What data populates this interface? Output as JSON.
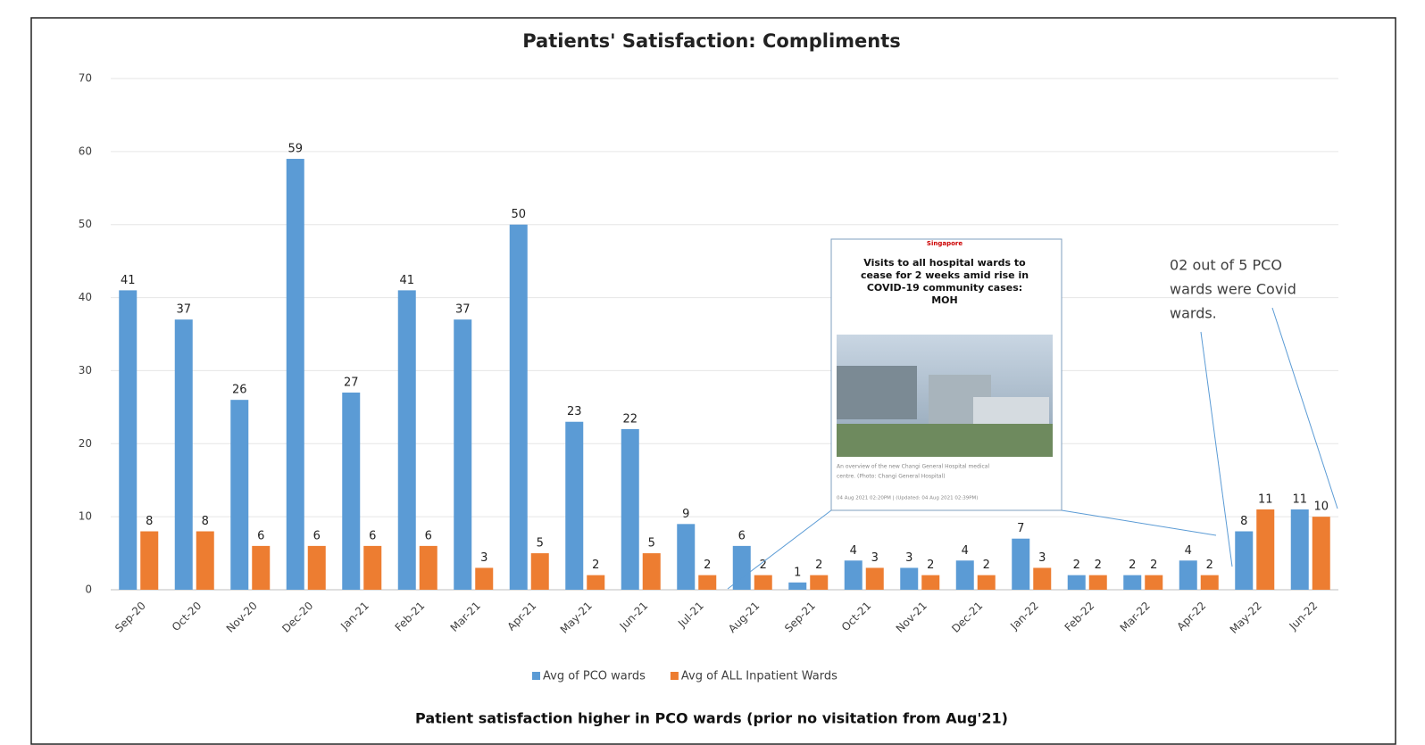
{
  "chart_data": {
    "type": "bar",
    "title": "Patients' Satisfaction: Compliments",
    "categories": [
      "Sep-20",
      "Oct-20",
      "Nov-20",
      "Dec-20",
      "Jan-21",
      "Feb-21",
      "Mar-21",
      "Apr-21",
      "May-21",
      "Jun-21",
      "Jul-21",
      "Aug-21",
      "Sep-21",
      "Oct-21",
      "Nov-21",
      "Dec-21",
      "Jan-22",
      "Feb-22",
      "Mar-22",
      "Apr-22",
      "May-22",
      "Jun-22"
    ],
    "series": [
      {
        "name": "Avg of PCO wards",
        "color": "#5b9bd5",
        "values": [
          41,
          37,
          26,
          59,
          27,
          41,
          37,
          50,
          23,
          22,
          9,
          6,
          1,
          4,
          3,
          4,
          7,
          2,
          2,
          4,
          8,
          11
        ]
      },
      {
        "name": "Avg of ALL Inpatient Wards",
        "color": "#ed7d31",
        "values": [
          8,
          8,
          6,
          6,
          6,
          6,
          3,
          5,
          2,
          5,
          2,
          2,
          2,
          3,
          2,
          2,
          3,
          2,
          2,
          2,
          11,
          10
        ]
      }
    ],
    "ylim": [
      0,
      70
    ],
    "yticks": [
      0,
      10,
      20,
      30,
      40,
      50,
      60,
      70
    ],
    "grid": true,
    "legend": "bottom",
    "note": [
      "02 out of 5 PCO",
      "wards were Covid",
      "wards."
    ],
    "footer": "Patient satisfaction higher in PCO wards (prior no visitation from Aug'21)",
    "news": {
      "section": "Singapore",
      "headline": [
        "Visits to all hospital wards to",
        "cease for 2 weeks amid rise in",
        "COVID-19 community cases:",
        "MOH"
      ],
      "caption": [
        "An overview of the new Changi General Hospital medical",
        "centre. (Photo: Changi General Hospital)"
      ],
      "date": "04 Aug 2021 02:20PM  |  (Updated: 04 Aug 2021 02:39PM)"
    }
  }
}
